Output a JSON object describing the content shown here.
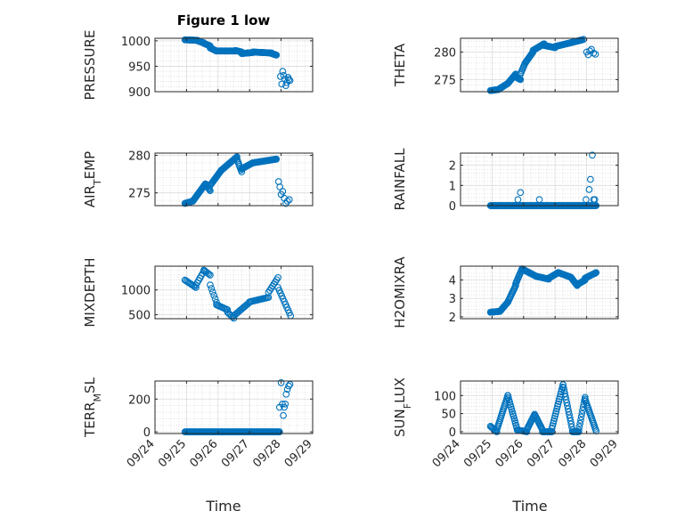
{
  "chart_data": {
    "type": "scatter",
    "title": "Figure 1 low",
    "x_tick_labels": [
      "09/24",
      "09/25",
      "09/26",
      "09/27",
      "09/28",
      "09/29"
    ],
    "xlabel": "Time",
    "marker_color": "#0072BD",
    "grid": true,
    "panels": [
      {
        "key": "pressure",
        "ylabel": "PRESSURE",
        "ylim": [
          900,
          1005
        ],
        "yticks": [
          900,
          950,
          1000
        ],
        "xlim": [
          0,
          5
        ],
        "x": [
          0,
          0.1
        ],
        "series": [
          {
            "from": 0.95,
            "to": 1.35,
            "step": 0.02,
            "y": [
              1002,
              1001
            ]
          },
          {
            "from": 1.35,
            "to": 1.55,
            "step": 0.02,
            "y": [
              1000,
              996
            ]
          },
          {
            "from": 1.55,
            "to": 1.75,
            "step": 0.02,
            "y": [
              995,
              990
            ]
          },
          {
            "from": 1.75,
            "to": 1.95,
            "step": 0.02,
            "y": [
              986,
              980
            ]
          },
          {
            "from": 1.95,
            "to": 2.55,
            "step": 0.02,
            "y": [
              980,
              980
            ]
          },
          {
            "from": 2.55,
            "to": 2.75,
            "step": 0.02,
            "y": [
              981,
              978
            ]
          },
          {
            "from": 2.75,
            "to": 3.1,
            "step": 0.02,
            "y": [
              975,
              977
            ]
          },
          {
            "from": 3.1,
            "to": 3.7,
            "step": 0.02,
            "y": [
              978,
              976
            ]
          },
          {
            "from": 3.7,
            "to": 3.85,
            "step": 0.02,
            "y": [
              975,
              972
            ]
          }
        ],
        "points": [
          [
            3.98,
            930
          ],
          [
            4.02,
            915
          ],
          [
            4.05,
            940
          ],
          [
            4.08,
            932
          ],
          [
            4.12,
            925
          ],
          [
            4.15,
            912
          ],
          [
            4.18,
            918
          ],
          [
            4.22,
            928
          ],
          [
            4.25,
            924
          ],
          [
            4.28,
            922
          ]
        ]
      },
      {
        "key": "theta",
        "ylabel": "THETA",
        "ylim": [
          272.8,
          282.5
        ],
        "yticks": [
          275,
          280
        ],
        "xlim": [
          0,
          5
        ],
        "series": [
          {
            "from": 0.95,
            "to": 1.2,
            "step": 0.02,
            "y": [
              273,
              273.2
            ]
          },
          {
            "from": 1.2,
            "to": 1.5,
            "step": 0.02,
            "y": [
              273.2,
              274.3
            ]
          },
          {
            "from": 1.5,
            "to": 1.75,
            "step": 0.02,
            "y": [
              274.3,
              276
            ]
          },
          {
            "from": 1.75,
            "to": 1.9,
            "step": 0.02,
            "y": [
              275.5,
              275
            ]
          },
          {
            "from": 1.9,
            "to": 2.05,
            "step": 0.02,
            "y": [
              276,
              278
            ]
          },
          {
            "from": 2.05,
            "to": 2.3,
            "step": 0.02,
            "y": [
              278,
              280
            ]
          },
          {
            "from": 2.3,
            "to": 2.65,
            "step": 0.02,
            "y": [
              280.3,
              281.5
            ]
          },
          {
            "from": 2.65,
            "to": 3.0,
            "step": 0.02,
            "y": [
              281.2,
              280.8
            ]
          },
          {
            "from": 3.0,
            "to": 3.5,
            "step": 0.02,
            "y": [
              281,
              281.7
            ]
          },
          {
            "from": 3.5,
            "to": 3.85,
            "step": 0.02,
            "y": [
              281.7,
              282.2
            ]
          }
        ],
        "points": [
          [
            3.9,
            282.3
          ],
          [
            4.0,
            280
          ],
          [
            4.05,
            279.5
          ],
          [
            4.1,
            280.2
          ],
          [
            4.15,
            280.5
          ],
          [
            4.22,
            279.8
          ],
          [
            4.28,
            279.6
          ]
        ]
      },
      {
        "key": "air_temp",
        "ylabel": "AIR_TEMP",
        "ylim": [
          273.3,
          280.3
        ],
        "yticks": [
          275,
          280
        ],
        "xlim": [
          0,
          5
        ],
        "series": [
          {
            "from": 0.95,
            "to": 1.2,
            "step": 0.02,
            "y": [
              273.6,
              273.9
            ]
          },
          {
            "from": 1.2,
            "to": 1.6,
            "step": 0.02,
            "y": [
              273.9,
              276.2
            ]
          },
          {
            "from": 1.6,
            "to": 1.75,
            "step": 0.02,
            "y": [
              276.2,
              275.3
            ]
          },
          {
            "from": 1.75,
            "to": 2.1,
            "step": 0.02,
            "y": [
              276,
              278
            ]
          },
          {
            "from": 2.1,
            "to": 2.6,
            "step": 0.02,
            "y": [
              278,
              279.8
            ]
          },
          {
            "from": 2.6,
            "to": 2.75,
            "step": 0.02,
            "y": [
              279.5,
              277.8
            ]
          },
          {
            "from": 2.75,
            "to": 3.1,
            "step": 0.02,
            "y": [
              278.2,
              279
            ]
          },
          {
            "from": 3.1,
            "to": 3.85,
            "step": 0.02,
            "y": [
              279,
              279.5
            ]
          }
        ],
        "points": [
          [
            3.92,
            276.5
          ],
          [
            3.96,
            275.8
          ],
          [
            4.0,
            274.8
          ],
          [
            4.05,
            275.2
          ],
          [
            4.1,
            274.3
          ],
          [
            4.15,
            273.6
          ],
          [
            4.2,
            273.9
          ],
          [
            4.26,
            274.1
          ]
        ]
      },
      {
        "key": "rainfall",
        "ylabel": "RAINFALL",
        "ylim": [
          0,
          2.6
        ],
        "yticks": [
          0,
          1,
          2
        ],
        "xlim": [
          0,
          5
        ],
        "series": [
          {
            "from": 0.95,
            "to": 4.3,
            "step": 0.02,
            "y": [
              0,
              0
            ]
          }
        ],
        "points": [
          [
            1.82,
            0.3
          ],
          [
            1.9,
            0.65
          ],
          [
            2.5,
            0.3
          ],
          [
            3.98,
            0.3
          ],
          [
            4.08,
            0.8
          ],
          [
            4.12,
            1.3
          ],
          [
            4.18,
            2.5
          ],
          [
            4.22,
            0.3
          ],
          [
            4.26,
            0.3
          ]
        ]
      },
      {
        "key": "mixdepth",
        "ylabel": "MIXDEPTH",
        "ylim": [
          420,
          1480
        ],
        "yticks": [
          500,
          1000
        ],
        "xlim": [
          0,
          5
        ],
        "series": [
          {
            "from": 0.95,
            "to": 1.3,
            "step": 0.04,
            "y": [
              1200,
              1050
            ]
          },
          {
            "from": 1.3,
            "to": 1.55,
            "step": 0.04,
            "y": [
              1100,
              1380
            ]
          },
          {
            "from": 1.55,
            "to": 1.75,
            "step": 0.04,
            "y": [
              1400,
              1300
            ]
          },
          {
            "from": 1.75,
            "to": 1.95,
            "step": 0.04,
            "y": [
              1100,
              750
            ]
          },
          {
            "from": 1.95,
            "to": 2.3,
            "step": 0.04,
            "y": [
              700,
              600
            ]
          },
          {
            "from": 2.3,
            "to": 2.5,
            "step": 0.04,
            "y": [
              550,
              430
            ]
          },
          {
            "from": 2.5,
            "to": 3.0,
            "step": 0.04,
            "y": [
              480,
              750
            ]
          },
          {
            "from": 3.0,
            "to": 3.6,
            "step": 0.04,
            "y": [
              760,
              850
            ]
          },
          {
            "from": 3.6,
            "to": 3.9,
            "step": 0.04,
            "y": [
              950,
              1250
            ]
          },
          {
            "from": 3.9,
            "to": 4.3,
            "step": 0.04,
            "y": [
              1050,
              480
            ]
          }
        ],
        "points": []
      },
      {
        "key": "h2omixra",
        "ylabel": "H2OMIXRA",
        "ylim": [
          1.9,
          4.75
        ],
        "yticks": [
          2,
          3,
          4
        ],
        "xlim": [
          0,
          5
        ],
        "series": [
          {
            "from": 0.95,
            "to": 1.25,
            "step": 0.02,
            "y": [
              2.25,
              2.3
            ]
          },
          {
            "from": 1.25,
            "to": 1.5,
            "step": 0.02,
            "y": [
              2.3,
              2.8
            ]
          },
          {
            "from": 1.5,
            "to": 1.75,
            "step": 0.02,
            "y": [
              2.8,
              3.7
            ]
          },
          {
            "from": 1.75,
            "to": 1.95,
            "step": 0.02,
            "y": [
              3.8,
              4.6
            ]
          },
          {
            "from": 1.95,
            "to": 2.4,
            "step": 0.02,
            "y": [
              4.6,
              4.2
            ]
          },
          {
            "from": 2.4,
            "to": 2.8,
            "step": 0.02,
            "y": [
              4.2,
              4.05
            ]
          },
          {
            "from": 2.8,
            "to": 3.1,
            "step": 0.02,
            "y": [
              4.1,
              4.4
            ]
          },
          {
            "from": 3.1,
            "to": 3.5,
            "step": 0.02,
            "y": [
              4.4,
              4.15
            ]
          },
          {
            "from": 3.5,
            "to": 3.7,
            "step": 0.02,
            "y": [
              4.15,
              3.7
            ]
          },
          {
            "from": 3.7,
            "to": 3.95,
            "step": 0.02,
            "y": [
              3.75,
              4.0
            ]
          },
          {
            "from": 3.95,
            "to": 4.3,
            "step": 0.02,
            "y": [
              4.1,
              4.4
            ]
          }
        ],
        "points": []
      },
      {
        "key": "terr_msl",
        "ylabel": "TERR_MSL",
        "ylim": [
          -10,
          310
        ],
        "yticks": [
          0,
          200
        ],
        "xlim": [
          0,
          5
        ],
        "series": [
          {
            "from": 0.95,
            "to": 3.95,
            "step": 0.02,
            "y": [
              0,
              0
            ]
          }
        ],
        "points": [
          [
            3.95,
            150
          ],
          [
            4.0,
            300
          ],
          [
            4.04,
            170
          ],
          [
            4.07,
            100
          ],
          [
            4.1,
            150
          ],
          [
            4.13,
            170
          ],
          [
            4.16,
            230
          ],
          [
            4.2,
            260
          ],
          [
            4.24,
            280
          ],
          [
            4.28,
            290
          ]
        ]
      },
      {
        "key": "sun_flux",
        "ylabel": "SUN_FLUX",
        "ylim": [
          -5,
          140
        ],
        "yticks": [
          0,
          50,
          100
        ],
        "xlim": [
          0,
          5
        ],
        "series": [
          {
            "from": 0.95,
            "to": 1.15,
            "step": 0.03,
            "y": [
              15,
              0
            ]
          },
          {
            "from": 1.15,
            "to": 1.5,
            "step": 0.02,
            "y": [
              5,
              100
            ]
          },
          {
            "from": 1.5,
            "to": 1.8,
            "step": 0.02,
            "y": [
              100,
              5
            ]
          },
          {
            "from": 1.8,
            "to": 2.1,
            "step": 0.03,
            "y": [
              5,
              0
            ]
          },
          {
            "from": 2.1,
            "to": 2.35,
            "step": 0.02,
            "y": [
              5,
              48
            ]
          },
          {
            "from": 2.35,
            "to": 2.6,
            "step": 0.02,
            "y": [
              48,
              5
            ]
          },
          {
            "from": 2.6,
            "to": 2.9,
            "step": 0.03,
            "y": [
              0,
              0
            ]
          },
          {
            "from": 2.9,
            "to": 3.25,
            "step": 0.02,
            "y": [
              10,
              130
            ]
          },
          {
            "from": 3.25,
            "to": 3.55,
            "step": 0.02,
            "y": [
              130,
              5
            ]
          },
          {
            "from": 3.55,
            "to": 3.75,
            "step": 0.03,
            "y": [
              0,
              0
            ]
          },
          {
            "from": 3.75,
            "to": 3.95,
            "step": 0.02,
            "y": [
              5,
              95
            ]
          },
          {
            "from": 3.95,
            "to": 4.3,
            "step": 0.02,
            "y": [
              90,
              2
            ]
          }
        ],
        "points": []
      }
    ]
  },
  "labels": {
    "title": "Figure 1 low",
    "xlabel_left": "Time",
    "xlabel_right": "Time"
  }
}
